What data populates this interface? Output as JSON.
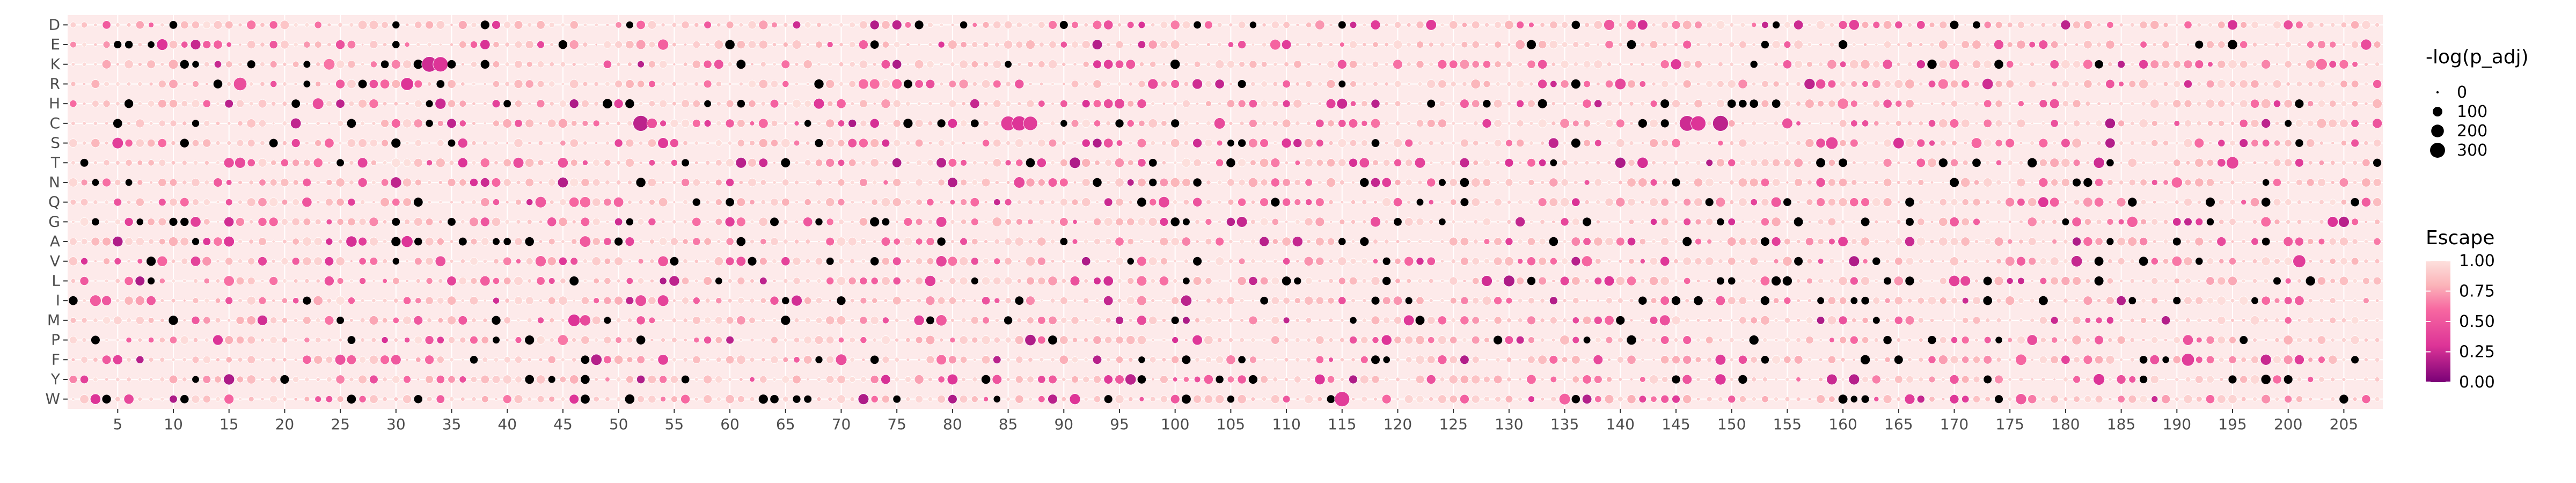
{
  "chart_data": {
    "type": "scatter",
    "title": "",
    "xlabel": "",
    "ylabel": "",
    "x_range": [
      1,
      208
    ],
    "x_ticks": [
      5,
      10,
      15,
      20,
      25,
      30,
      35,
      40,
      45,
      50,
      55,
      60,
      65,
      70,
      75,
      80,
      85,
      90,
      95,
      100,
      105,
      110,
      115,
      120,
      125,
      130,
      135,
      140,
      145,
      150,
      155,
      160,
      165,
      170,
      175,
      180,
      185,
      190,
      195,
      200,
      205
    ],
    "y_categories": [
      "D",
      "E",
      "K",
      "R",
      "H",
      "C",
      "S",
      "T",
      "N",
      "Q",
      "G",
      "A",
      "V",
      "L",
      "I",
      "M",
      "P",
      "F",
      "Y",
      "W"
    ],
    "grid": "on",
    "panel_background": "#fdeaea",
    "point_border_color": "#ffffff",
    "missing_value_color": "#000000",
    "legend_placement": "right",
    "legend_size": {
      "title": "-log(p_adj)",
      "breaks": [
        0,
        100,
        200,
        300
      ]
    },
    "legend_color": {
      "title": "Escape",
      "breaks": [
        1.0,
        0.75,
        0.5,
        0.25,
        0.0
      ],
      "labels": [
        "1.00",
        "0.75",
        "0.50",
        "0.25",
        "0.00"
      ],
      "colors": [
        {
          "stop": 0.0,
          "color": "#7a0177"
        },
        {
          "stop": 0.3,
          "color": "#dd3497"
        },
        {
          "stop": 0.6,
          "color": "#f768a1"
        },
        {
          "stop": 0.8,
          "color": "#fbb4b9"
        },
        {
          "stop": 1.0,
          "color": "#fde0dd"
        }
      ]
    },
    "highlight_points": [
      {
        "aa": "K",
        "x": 33,
        "escape": 0.25,
        "neglog_padj": 320
      },
      {
        "aa": "K",
        "x": 34,
        "escape": 0.3,
        "neglog_padj": 300
      },
      {
        "aa": "C",
        "x": 52,
        "escape": 0.2,
        "neglog_padj": 330
      },
      {
        "aa": "C",
        "x": 85,
        "escape": 0.35,
        "neglog_padj": 280
      },
      {
        "aa": "C",
        "x": 86,
        "escape": 0.3,
        "neglog_padj": 290
      },
      {
        "aa": "C",
        "x": 87,
        "escape": 0.35,
        "neglog_padj": 260
      },
      {
        "aa": "C",
        "x": 146,
        "escape": 0.25,
        "neglog_padj": 320
      },
      {
        "aa": "C",
        "x": 147,
        "escape": 0.3,
        "neglog_padj": 300
      },
      {
        "aa": "C",
        "x": 149,
        "escape": 0.2,
        "neglog_padj": 330
      },
      {
        "aa": "W",
        "x": 115,
        "escape": 0.35,
        "neglog_padj": 300
      },
      {
        "aa": "R",
        "x": 16,
        "escape": 0.45,
        "neglog_padj": 220
      },
      {
        "aa": "R",
        "x": 31,
        "escape": 0.3,
        "neglog_padj": 200
      },
      {
        "aa": "S",
        "x": 159,
        "escape": 0.4,
        "neglog_padj": 180
      },
      {
        "aa": "T",
        "x": 195,
        "escape": 0.4,
        "neglog_padj": 180
      },
      {
        "aa": "V",
        "x": 201,
        "escape": 0.35,
        "neglog_padj": 200
      },
      {
        "aa": "F",
        "x": 191,
        "escape": 0.35,
        "neglog_padj": 200
      },
      {
        "aa": "A",
        "x": 31,
        "escape": 0.3,
        "neglog_padj": 160
      },
      {
        "aa": "M",
        "x": 46,
        "escape": 0.3,
        "neglog_padj": 180
      },
      {
        "aa": "Y",
        "x": 183,
        "escape": 0.3,
        "neglog_padj": 150
      }
    ]
  }
}
